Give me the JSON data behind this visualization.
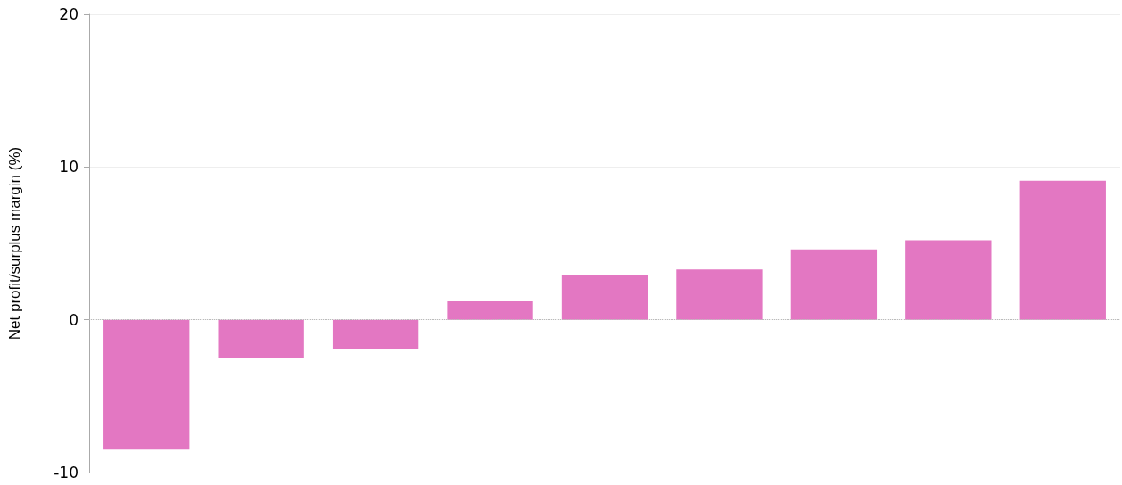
{
  "chart_data": {
    "type": "bar",
    "ylabel": "Net profit/surplus margin (%)",
    "categories": [
      null,
      null,
      null,
      null,
      null,
      null,
      null,
      null,
      null
    ],
    "values": [
      -8.5,
      -2.5,
      -1.9,
      1.2,
      2.9,
      3.3,
      4.6,
      5.2,
      9.1
    ],
    "color": "#e377c2",
    "ylim": [
      -10,
      20
    ],
    "yticks": [
      -10,
      0,
      10,
      20
    ],
    "grid": "y",
    "ref_lines": [
      {
        "axis": "y",
        "value": 0,
        "color": "#bbbbbb",
        "line_style": "dotted"
      }
    ]
  }
}
